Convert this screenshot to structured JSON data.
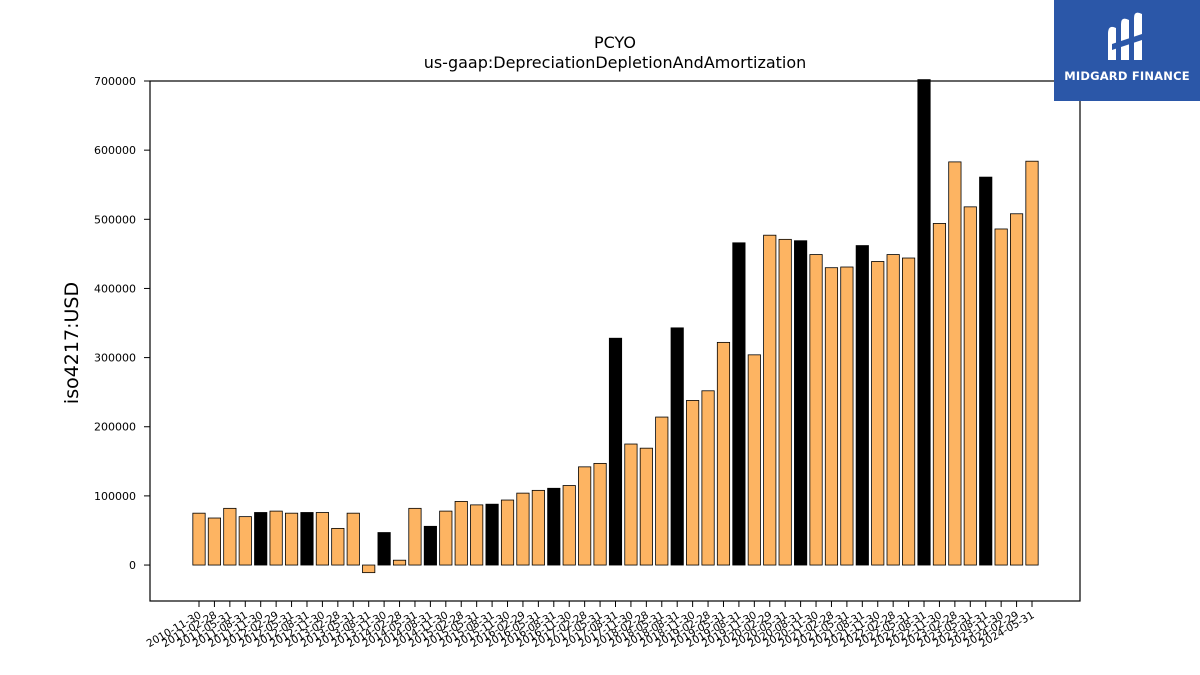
{
  "brand": {
    "name": "MIDGARD FINANCE",
    "background": "#2b57a8"
  },
  "chart_data": {
    "type": "bar",
    "title": "PCYO",
    "subtitle": "us-gaap:DepreciationDepletionAndAmortization",
    "ylabel": "iso4217:USD",
    "xlabel": "",
    "ylim": [
      -52000,
      700000
    ],
    "yticks": [
      0,
      100000,
      200000,
      300000,
      400000,
      500000,
      600000,
      700000
    ],
    "grid": false,
    "colors": {
      "quarterly": "#fdb462",
      "annual": "#000000"
    },
    "categories": [
      "2010-11-30",
      "2011-02-28",
      "2011-05-31",
      "2011-08-31",
      "2011-11-30",
      "2012-02-29",
      "2012-05-31",
      "2012-08-31",
      "2012-11-30",
      "2013-02-28",
      "2013-05-31",
      "2013-08-31",
      "2013-11-30",
      "2014-02-28",
      "2014-05-31",
      "2014-08-31",
      "2014-11-30",
      "2015-02-28",
      "2015-05-31",
      "2015-08-31",
      "2015-11-30",
      "2016-02-29",
      "2016-05-31",
      "2016-08-31",
      "2016-11-30",
      "2017-02-28",
      "2017-05-31",
      "2017-08-31",
      "2017-11-30",
      "2018-02-28",
      "2018-05-31",
      "2018-08-31",
      "2018-11-30",
      "2019-02-28",
      "2019-05-31",
      "2019-08-31",
      "2019-11-30",
      "2020-02-29",
      "2020-05-31",
      "2020-08-31",
      "2020-11-30",
      "2021-02-28",
      "2021-05-31",
      "2021-08-31",
      "2021-11-30",
      "2022-02-28",
      "2022-05-31",
      "2022-08-31",
      "2022-11-30",
      "2023-02-28",
      "2023-05-31",
      "2023-08-31",
      "2023-11-30",
      "2024-02-29",
      "2024-05-31"
    ],
    "values": [
      75000,
      68000,
      82000,
      70000,
      76000,
      78000,
      75000,
      76000,
      76000,
      53000,
      75000,
      -11000,
      47000,
      7000,
      82000,
      56000,
      78000,
      92000,
      87000,
      88000,
      94000,
      104000,
      108000,
      111000,
      115000,
      142000,
      147000,
      328000,
      175000,
      169000,
      214000,
      343000,
      238000,
      252000,
      322000,
      466000,
      304000,
      477000,
      471000,
      469000,
      449000,
      430000,
      431000,
      462000,
      439000,
      449000,
      444000,
      702000,
      494000,
      583000,
      518000,
      561000,
      486000,
      508000,
      584000
    ],
    "annual": [
      false,
      false,
      false,
      false,
      true,
      false,
      false,
      true,
      false,
      false,
      false,
      false,
      true,
      false,
      false,
      true,
      false,
      false,
      false,
      true,
      false,
      false,
      false,
      true,
      false,
      false,
      false,
      true,
      false,
      false,
      false,
      true,
      false,
      false,
      false,
      true,
      false,
      false,
      false,
      true,
      false,
      false,
      false,
      true,
      false,
      false,
      false,
      true,
      false,
      false,
      false,
      true,
      false,
      false,
      false
    ]
  }
}
